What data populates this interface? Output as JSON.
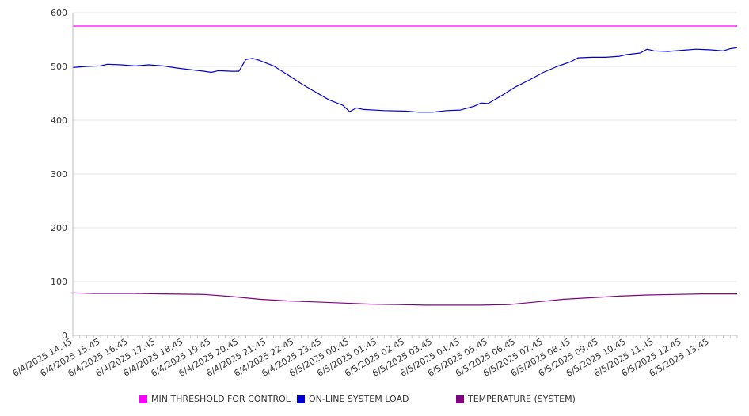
{
  "chart_data": {
    "type": "line",
    "title": "",
    "xlabel": "",
    "ylabel": "",
    "ylim": [
      0,
      600
    ],
    "y_ticks": [
      "0",
      "100",
      "200",
      "300",
      "400",
      "500",
      "600"
    ],
    "x_tick_labels": [
      "6/4/2025 14:45",
      "6/4/2025 15:45",
      "6/4/2025 16:45",
      "6/4/2025 17:45",
      "6/4/2025 18:45",
      "6/4/2025 19:45",
      "6/4/2025 20:45",
      "6/4/2025 21:45",
      "6/4/2025 22:45",
      "6/4/2025 23:45",
      "6/5/2025 00:45",
      "6/5/2025 01:45",
      "6/5/2025 02:45",
      "6/5/2025 03:45",
      "6/5/2025 04:45",
      "6/5/2025 05:45",
      "6/5/2025 06:45",
      "6/5/2025 07:45",
      "6/5/2025 08:45",
      "6/5/2025 09:45",
      "6/5/2025 10:45",
      "6/5/2025 11:45",
      "6/5/2025 12:45",
      "6/5/2025 13:45"
    ],
    "x_start": "6/4/2025 14:45",
    "x_end": "6/5/2025 14:45",
    "grid": true,
    "legend_position": "bottom",
    "series": [
      {
        "name": "MIN THRESHOLD FOR CONTROL",
        "color": "#ff00ff",
        "points": [
          [
            "6/4/2025 14:45",
            575
          ],
          [
            "6/5/2025 14:45",
            575
          ]
        ]
      },
      {
        "name": "ON-LINE SYSTEM LOAD",
        "color": "#0000cc",
        "points": [
          [
            "6/4/2025 14:45",
            498
          ],
          [
            "6/4/2025 15:15",
            500
          ],
          [
            "6/4/2025 15:45",
            501
          ],
          [
            "6/4/2025 16:00",
            504
          ],
          [
            "6/4/2025 16:30",
            503
          ],
          [
            "6/4/2025 17:00",
            501
          ],
          [
            "6/4/2025 17:30",
            503
          ],
          [
            "6/4/2025 18:00",
            501
          ],
          [
            "6/4/2025 18:30",
            497
          ],
          [
            "6/4/2025 19:00",
            494
          ],
          [
            "6/4/2025 19:30",
            491
          ],
          [
            "6/4/2025 19:45",
            489
          ],
          [
            "6/4/2025 20:00",
            492
          ],
          [
            "6/4/2025 20:30",
            491
          ],
          [
            "6/4/2025 20:45",
            491
          ],
          [
            "6/4/2025 21:00",
            513
          ],
          [
            "6/4/2025 21:15",
            515
          ],
          [
            "6/4/2025 21:30",
            511
          ],
          [
            "6/4/2025 21:45",
            506
          ],
          [
            "6/4/2025 22:00",
            501
          ],
          [
            "6/4/2025 22:30",
            485
          ],
          [
            "6/4/2025 23:00",
            468
          ],
          [
            "6/4/2025 23:30",
            453
          ],
          [
            "6/5/2025 00:00",
            438
          ],
          [
            "6/5/2025 00:30",
            428
          ],
          [
            "6/5/2025 00:45",
            416
          ],
          [
            "6/5/2025 01:00",
            423
          ],
          [
            "6/5/2025 01:15",
            420
          ],
          [
            "6/5/2025 02:00",
            418
          ],
          [
            "6/5/2025 02:45",
            417
          ],
          [
            "6/5/2025 03:15",
            415
          ],
          [
            "6/5/2025 03:45",
            415
          ],
          [
            "6/5/2025 04:15",
            418
          ],
          [
            "6/5/2025 04:45",
            419
          ],
          [
            "6/5/2025 05:15",
            426
          ],
          [
            "6/5/2025 05:30",
            432
          ],
          [
            "6/5/2025 05:45",
            431
          ],
          [
            "6/5/2025 06:15",
            446
          ],
          [
            "6/5/2025 06:45",
            462
          ],
          [
            "6/5/2025 07:15",
            475
          ],
          [
            "6/5/2025 07:45",
            489
          ],
          [
            "6/5/2025 08:15",
            500
          ],
          [
            "6/5/2025 08:45",
            509
          ],
          [
            "6/5/2025 09:00",
            516
          ],
          [
            "6/5/2025 09:30",
            517
          ],
          [
            "6/5/2025 10:00",
            517
          ],
          [
            "6/5/2025 10:30",
            519
          ],
          [
            "6/5/2025 10:45",
            522
          ],
          [
            "6/5/2025 11:15",
            525
          ],
          [
            "6/5/2025 11:30",
            532
          ],
          [
            "6/5/2025 11:45",
            529
          ],
          [
            "6/5/2025 12:15",
            528
          ],
          [
            "6/5/2025 12:45",
            530
          ],
          [
            "6/5/2025 13:15",
            532
          ],
          [
            "6/5/2025 13:45",
            531
          ],
          [
            "6/5/2025 14:15",
            529
          ],
          [
            "6/5/2025 14:30",
            533
          ],
          [
            "6/5/2025 14:45",
            535
          ]
        ]
      },
      {
        "name": "TEMPERATURE (SYSTEM)",
        "color": "#800080",
        "points": [
          [
            "6/4/2025 14:45",
            79
          ],
          [
            "6/4/2025 15:30",
            78
          ],
          [
            "6/4/2025 17:00",
            78
          ],
          [
            "6/4/2025 18:00",
            77
          ],
          [
            "6/4/2025 19:30",
            76
          ],
          [
            "6/4/2025 20:30",
            72
          ],
          [
            "6/4/2025 21:30",
            67
          ],
          [
            "6/4/2025 22:30",
            64
          ],
          [
            "6/4/2025 23:30",
            62
          ],
          [
            "6/5/2025 00:30",
            60
          ],
          [
            "6/5/2025 01:30",
            58
          ],
          [
            "6/5/2025 02:30",
            57
          ],
          [
            "6/5/2025 03:30",
            56
          ],
          [
            "6/5/2025 04:30",
            56
          ],
          [
            "6/5/2025 05:30",
            56
          ],
          [
            "6/5/2025 06:30",
            57
          ],
          [
            "6/5/2025 07:30",
            62
          ],
          [
            "6/5/2025 08:30",
            67
          ],
          [
            "6/5/2025 09:30",
            70
          ],
          [
            "6/5/2025 10:30",
            73
          ],
          [
            "6/5/2025 11:30",
            75
          ],
          [
            "6/5/2025 12:30",
            76
          ],
          [
            "6/5/2025 13:30",
            77
          ],
          [
            "6/5/2025 14:45",
            77
          ]
        ]
      }
    ]
  }
}
